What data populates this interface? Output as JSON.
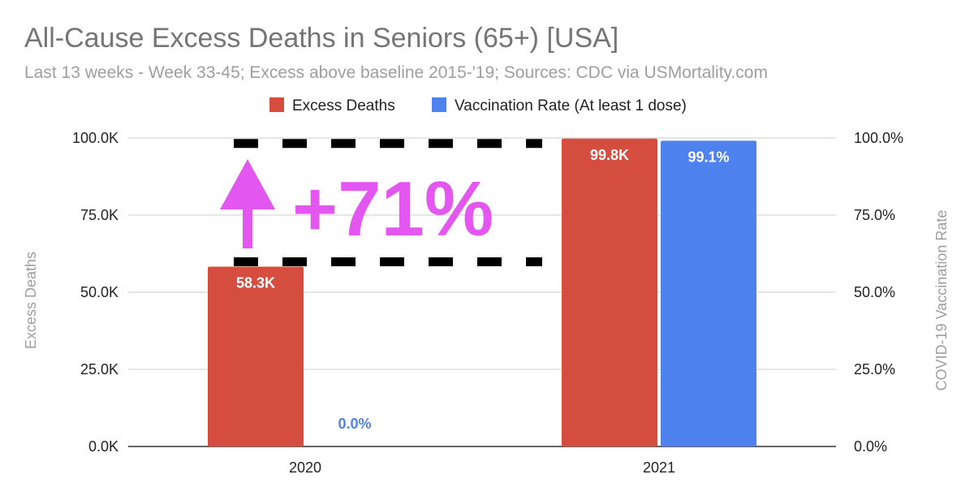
{
  "chart_data": {
    "type": "bar",
    "title": "All-Cause Excess Deaths in Seniors (65+) [USA]",
    "subtitle": "Last 13 weeks - Week 33-45; Excess above baseline 2015-'19; Sources: CDC via USMortality.com",
    "categories": [
      "2020",
      "2021"
    ],
    "series": [
      {
        "name": "Excess Deaths",
        "axis": "left",
        "color": "#d54d3f",
        "values": [
          58300,
          99800
        ],
        "labels": [
          "58.3K",
          "99.8K"
        ],
        "label_color": "#ffffff"
      },
      {
        "name": "Vaccination Rate (At least 1 dose)",
        "axis": "right",
        "color": "#4e82ee",
        "values": [
          0.0,
          99.1
        ],
        "labels": [
          "0.0%",
          "99.1%"
        ],
        "label_color": "#ffffff",
        "zero_label_color": "#4e82ee"
      }
    ],
    "ylabel": "Excess Deaths",
    "ylim": [
      0,
      100000
    ],
    "yticks": [
      "0.0K",
      "25.0K",
      "50.0K",
      "75.0K",
      "100.0K"
    ],
    "y2label": "COVID-19 Vaccination Rate",
    "y2lim": [
      0,
      100
    ],
    "y2ticks": [
      "0.0%",
      "25.0%",
      "50.0%",
      "75.0%",
      "100.0%"
    ],
    "grid": true,
    "legend_position": "top-center",
    "annotation": {
      "text": "+71%",
      "color": "#e456f0",
      "from_value": 58300,
      "to_value": 99800
    }
  }
}
